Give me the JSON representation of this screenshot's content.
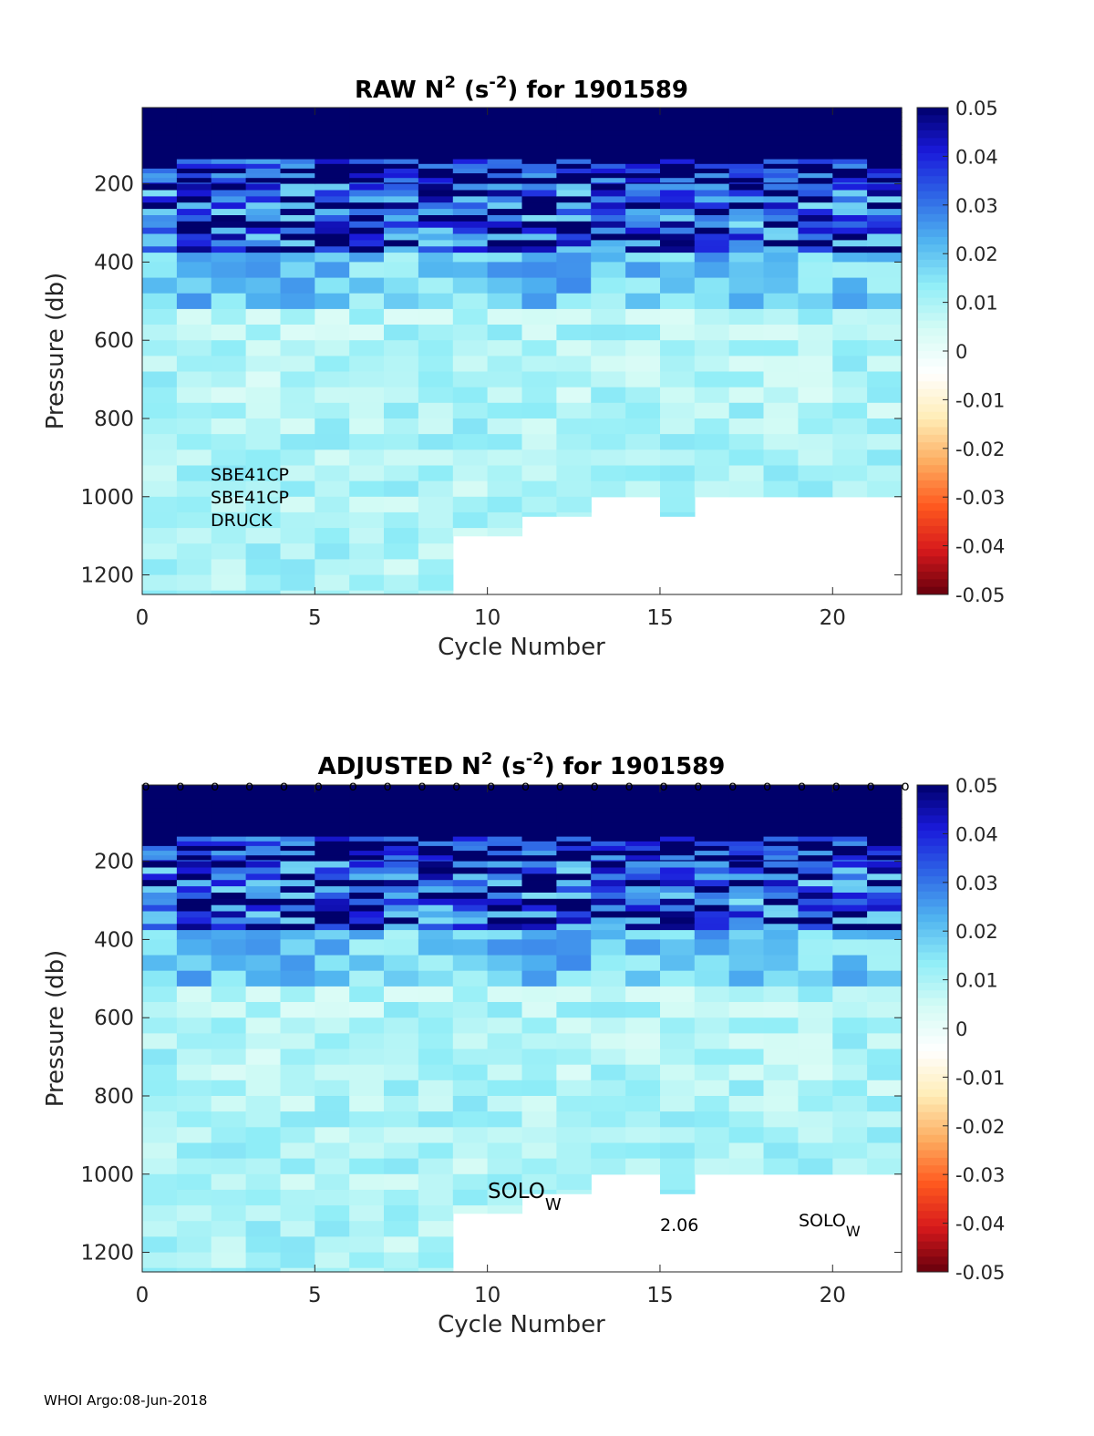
{
  "footer": "WHOI Argo:08-Jun-2018",
  "colors": {
    "colormap": [
      "#67000d",
      "#d7191c",
      "#ff5a1f",
      "#fdae61",
      "#ffedb8",
      "#ffffff",
      "#d4fbf5",
      "#8fedf7",
      "#4fb3f0",
      "#2e66e6",
      "#1a1adb",
      "#00006b"
    ]
  },
  "chart_data": [
    {
      "type": "heatmap",
      "title_prefix": "RAW N",
      "title_sup": "2",
      "title_mid": " (s",
      "title_sup2": "-2",
      "title_suffix": ") for 1901589",
      "xlabel": "Cycle Number",
      "ylabel": "Pressure (db)",
      "xlim": [
        0,
        22
      ],
      "ylim": [
        1250,
        5
      ],
      "xticks": [
        0,
        5,
        10,
        15,
        20
      ],
      "xtick_labels": [
        "0",
        "5",
        "10",
        "15",
        "20"
      ],
      "yticks": [
        200,
        400,
        600,
        800,
        1000,
        1200
      ],
      "ytick_labels": [
        "200",
        "400",
        "600",
        "800",
        "1000",
        "1200"
      ],
      "clim": [
        -0.05,
        0.05
      ],
      "cbar_ticks": [
        0.05,
        0.04,
        0.03,
        0.02,
        0.01,
        0,
        -0.01,
        -0.02,
        -0.03,
        -0.04,
        -0.05
      ],
      "cbar_tick_labels": [
        "0.05",
        "0.04",
        "0.03",
        "0.02",
        "0.01",
        "0",
        "-0.01",
        "-0.02",
        "-0.03",
        "-0.04",
        "-0.05"
      ],
      "max_pressure_by_cycle": [
        1250,
        1250,
        1250,
        1250,
        1250,
        1250,
        1250,
        1250,
        1250,
        1100,
        1100,
        1050,
        1050,
        1000,
        1000,
        1050,
        1000,
        1000,
        1000,
        1000,
        1000,
        1000
      ],
      "annotations": [
        "SBE41CP",
        "SBE41CP",
        "DRUCK"
      ],
      "cycle_markers": false
    },
    {
      "type": "heatmap",
      "title_prefix": "ADJUSTED N",
      "title_sup": "2",
      "title_mid": " (s",
      "title_sup2": "-2",
      "title_suffix": ") for 1901589",
      "xlabel": "Cycle Number",
      "ylabel": "Pressure (db)",
      "xlim": [
        0,
        22
      ],
      "ylim": [
        1250,
        5
      ],
      "xticks": [
        0,
        5,
        10,
        15,
        20
      ],
      "xtick_labels": [
        "0",
        "5",
        "10",
        "15",
        "20"
      ],
      "yticks": [
        200,
        400,
        600,
        800,
        1000,
        1200
      ],
      "ytick_labels": [
        "200",
        "400",
        "600",
        "800",
        "1000",
        "1200"
      ],
      "clim": [
        -0.05,
        0.05
      ],
      "cbar_ticks": [
        0.05,
        0.04,
        0.03,
        0.02,
        0.01,
        0,
        -0.01,
        -0.02,
        -0.03,
        -0.04,
        -0.05
      ],
      "cbar_tick_labels": [
        "0.05",
        "0.04",
        "0.03",
        "0.02",
        "0.01",
        "0",
        "-0.01",
        "-0.02",
        "-0.03",
        "-0.04",
        "-0.05"
      ],
      "max_pressure_by_cycle": [
        1250,
        1250,
        1250,
        1250,
        1250,
        1250,
        1250,
        1250,
        1250,
        1100,
        1100,
        1050,
        1050,
        1000,
        1000,
        1050,
        1000,
        1000,
        1000,
        1000,
        1000,
        1000
      ],
      "annotations": [
        "SOLO",
        "W",
        "2.06",
        "SOLO",
        "W"
      ],
      "cycle_markers": true,
      "marker_symbol": "o"
    }
  ]
}
